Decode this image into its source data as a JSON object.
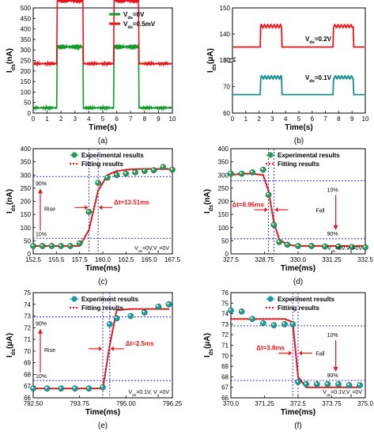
{
  "colors": {
    "red": "#e8141a",
    "green": "#119a2a",
    "teal": "#138f8f",
    "blue": "#1a1ae0",
    "marker": "#2a9a5a",
    "markerTeal": "#1c9aa0"
  },
  "panels": [
    {
      "id": "a",
      "caption": "(a)",
      "type": "line",
      "xlabel": "Time(s)",
      "ylabel": "I_ds(nA)",
      "xlim": [
        0,
        10
      ],
      "ylim": [
        0,
        500
      ],
      "xticks": [
        "0",
        "1",
        "2",
        "3",
        "4",
        "5",
        "6",
        "7",
        "8",
        "9",
        "10"
      ],
      "yticks": [
        "0",
        "50",
        "100",
        "150",
        "200",
        "250",
        "300",
        "350",
        "400",
        "450",
        "500"
      ],
      "legend": [
        "V_ds=0V",
        "V_ds=0.5mV"
      ],
      "series": [
        {
          "name": "V_ds=0V",
          "color": "green",
          "base": 25,
          "high": 315,
          "on": [
            [
              1.7,
              3.6
            ],
            [
              5.8,
              7.6
            ]
          ]
        },
        {
          "name": "V_ds=0.5mV",
          "color": "red",
          "base": 235,
          "high": 535,
          "on": [
            [
              1.7,
              3.6
            ],
            [
              5.8,
              7.6
            ]
          ]
        }
      ]
    },
    {
      "id": "b",
      "caption": "(b)",
      "type": "line",
      "xlabel": "Time(s)",
      "ylabel": "I_ds(μA)",
      "xlim": [
        0,
        10
      ],
      "xticks": [
        "0",
        "1",
        "2",
        "3",
        "4",
        "5",
        "6",
        "7",
        "8",
        "9",
        "10"
      ],
      "yticks_top": [
        "130",
        "140",
        "150"
      ],
      "yticks_bottom": [
        "60",
        "70",
        "80"
      ],
      "labels": [
        "V_ds=0.2V",
        "V_ds=0.1V"
      ],
      "series": [
        {
          "name": "V_ds=0.2V",
          "color": "red",
          "base": 135,
          "high": 143,
          "on": [
            [
              2.1,
              3.7
            ],
            [
              7.6,
              9.1
            ]
          ]
        },
        {
          "name": "V_ds=0.1V",
          "color": "teal",
          "base": 67,
          "high": 73.5,
          "on": [
            [
              2.1,
              3.7
            ],
            [
              7.6,
              9.1
            ]
          ]
        }
      ]
    },
    {
      "id": "c",
      "caption": "(c)",
      "xlabel": "Time(ms)",
      "ylabel": "I_ds(nA)",
      "xlim": [
        152.5,
        167.5
      ],
      "ylim": [
        0,
        400
      ],
      "xticks": [
        "152.5",
        "155.5",
        "157.5",
        "160.0",
        "162.5",
        "165.0",
        "167.5"
      ],
      "yticks": [
        "0",
        "50",
        "100",
        "150",
        "200",
        "250",
        "300",
        "350",
        "400"
      ],
      "legend": [
        "Experimental results",
        "Fitting results"
      ],
      "labels": {
        "hi": "90%",
        "lo": "10%",
        "dir": "Rise",
        "dt": "Δt=13.51ms",
        "cond": "V_ds=0V,V_g=0V"
      },
      "exp_x": [
        152.5,
        153.5,
        154.5,
        155.5,
        156.5,
        157.5,
        158.5,
        159.5,
        160.5,
        161.5,
        162.5,
        163.5,
        164.5,
        165.5,
        166.5,
        167.5
      ],
      "exp_y": [
        30,
        30,
        30,
        30,
        30,
        40,
        160,
        270,
        290,
        300,
        305,
        310,
        315,
        318,
        330,
        320
      ],
      "fit_y": [
        30,
        30,
        30,
        30,
        30,
        30,
        90,
        240,
        300,
        315,
        320,
        322,
        323,
        323,
        323,
        323
      ]
    },
    {
      "id": "d",
      "caption": "(d)",
      "xlabel": "Time(ms)",
      "ylabel": "I_ds(nA)",
      "xlim": [
        327.5,
        332.5
      ],
      "ylim": [
        0,
        400
      ],
      "xticks": [
        "327.5",
        "328.75",
        "330.0",
        "331.25",
        "332.5"
      ],
      "yticks": [
        "0",
        "50",
        "100",
        "150",
        "200",
        "250",
        "300",
        "350",
        "400"
      ],
      "legend": [
        "Experimental results",
        "Fitting results"
      ],
      "labels": {
        "hi": "10%",
        "lo": "90%",
        "dir": "Fall",
        "dt": "Δt=8.96ms",
        "cond": "V_ds=0V,V_g=0V"
      },
      "exp_x": [
        327.5,
        327.9,
        328.3,
        328.7,
        328.9,
        329.1,
        329.3,
        329.6,
        330.0,
        330.5,
        331.0,
        331.5,
        332.0,
        332.5
      ],
      "exp_y": [
        305,
        305,
        310,
        320,
        225,
        110,
        45,
        35,
        30,
        30,
        28,
        28,
        26,
        25
      ],
      "fit_y": [
        300,
        305,
        305,
        300,
        240,
        120,
        55,
        35,
        30,
        30,
        30,
        30,
        30,
        30
      ]
    },
    {
      "id": "e",
      "caption": "(e)",
      "xlabel": "Time(ms)",
      "ylabel": "I_ds(μA)",
      "xlim": [
        792.5,
        796.5
      ],
      "ylim": [
        66,
        75
      ],
      "xticks": [
        "792.50",
        "793.75",
        "795.00",
        "796.25"
      ],
      "yticks": [
        "66",
        "67",
        "68",
        "69",
        "70",
        "71",
        "72",
        "73",
        "74",
        "75"
      ],
      "legend": [
        "Experiment results",
        "Fitting results"
      ],
      "labels": {
        "hi": "90%",
        "lo": "10%",
        "dir": "Rise",
        "dt": "Δt=2.5ms",
        "cond": "V_ds=0.1V, V_g=0V"
      },
      "exp_x": [
        792.5,
        792.9,
        793.3,
        793.7,
        794.1,
        794.5,
        794.7,
        794.9,
        795.3,
        795.7,
        796.1,
        796.4
      ],
      "exp_y": [
        66.8,
        66.8,
        66.8,
        66.8,
        66.8,
        66.9,
        72.3,
        72.8,
        73.0,
        73.3,
        73.8,
        74.0
      ],
      "fit_y": [
        66.8,
        66.8,
        66.8,
        66.8,
        66.8,
        66.8,
        70.5,
        73.5,
        73.6,
        73.6,
        73.6,
        73.6
      ]
    },
    {
      "id": "f",
      "caption": "(f)",
      "xlabel": "Time(ms)",
      "ylabel": "I_ds(μA)",
      "xlim": [
        370.0,
        375.0
      ],
      "ylim": [
        66,
        76
      ],
      "xticks": [
        "370.0",
        "371.25",
        "372.5",
        "373.75",
        "375.0"
      ],
      "yticks": [
        "66",
        "67",
        "68",
        "69",
        "70",
        "71",
        "72",
        "73",
        "74",
        "75",
        "76"
      ],
      "legend": [
        "Experiment results",
        "Fitting results"
      ],
      "labels": {
        "hi": "10%",
        "lo": "90%",
        "dir": "Fall",
        "dt": "Δt=3.8ms",
        "cond": "V_ds=0.1V,V_g=0V"
      },
      "exp_x": [
        370.0,
        370.4,
        370.8,
        371.2,
        371.6,
        372.0,
        372.3,
        372.5,
        372.8,
        373.2,
        373.6,
        374.0,
        374.4,
        374.8
      ],
      "exp_y": [
        74.3,
        74.2,
        73.5,
        73.1,
        72.9,
        73.0,
        73.0,
        67.5,
        67.3,
        67.3,
        67.3,
        67.3,
        67.2,
        67.2
      ],
      "fit_y": [
        73.5,
        73.5,
        73.5,
        73.5,
        73.5,
        73.5,
        73.2,
        68.0,
        67.0,
        67.0,
        67.0,
        67.0,
        67.0,
        67.0
      ]
    }
  ]
}
